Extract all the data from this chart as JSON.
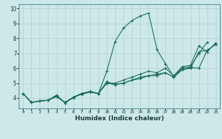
{
  "title": "",
  "xlabel": "Humidex (Indice chaleur)",
  "ylabel": "",
  "bg_color": "#cce8e8",
  "grid_color": "#b8d4d4",
  "line_color": "#1a6a5a",
  "xlim": [
    -0.5,
    23.5
  ],
  "ylim": [
    3.3,
    10.3
  ],
  "xticks": [
    0,
    1,
    2,
    3,
    4,
    5,
    6,
    7,
    8,
    9,
    10,
    11,
    12,
    13,
    14,
    15,
    16,
    17,
    18,
    19,
    20,
    21,
    22,
    23
  ],
  "yticks": [
    4,
    5,
    6,
    7,
    8,
    9,
    10
  ],
  "series": [
    [
      4.3,
      3.7,
      3.8,
      3.85,
      4.15,
      3.7,
      4.0,
      4.3,
      4.4,
      4.3,
      5.8,
      7.8,
      8.7,
      9.2,
      9.5,
      9.7,
      7.25,
      6.3,
      5.45,
      6.0,
      6.1,
      7.0,
      7.75,
      null
    ],
    [
      4.3,
      3.7,
      3.8,
      3.85,
      4.1,
      3.7,
      4.05,
      4.25,
      4.4,
      4.3,
      5.1,
      4.9,
      5.0,
      5.2,
      5.4,
      5.5,
      5.6,
      5.7,
      5.4,
      5.9,
      6.05,
      6.0,
      7.2,
      7.6
    ],
    [
      4.3,
      3.7,
      3.8,
      3.85,
      4.1,
      3.7,
      4.05,
      4.3,
      4.4,
      4.3,
      5.0,
      4.9,
      5.0,
      5.2,
      5.3,
      5.5,
      5.5,
      5.7,
      5.4,
      5.9,
      6.0,
      7.1,
      7.2,
      7.6
    ],
    [
      4.3,
      3.7,
      3.8,
      3.85,
      4.2,
      3.65,
      4.05,
      4.3,
      4.45,
      4.3,
      5.0,
      5.0,
      5.2,
      5.4,
      5.6,
      5.8,
      5.7,
      6.0,
      5.5,
      6.1,
      6.2,
      7.5,
      7.1,
      7.7
    ]
  ]
}
